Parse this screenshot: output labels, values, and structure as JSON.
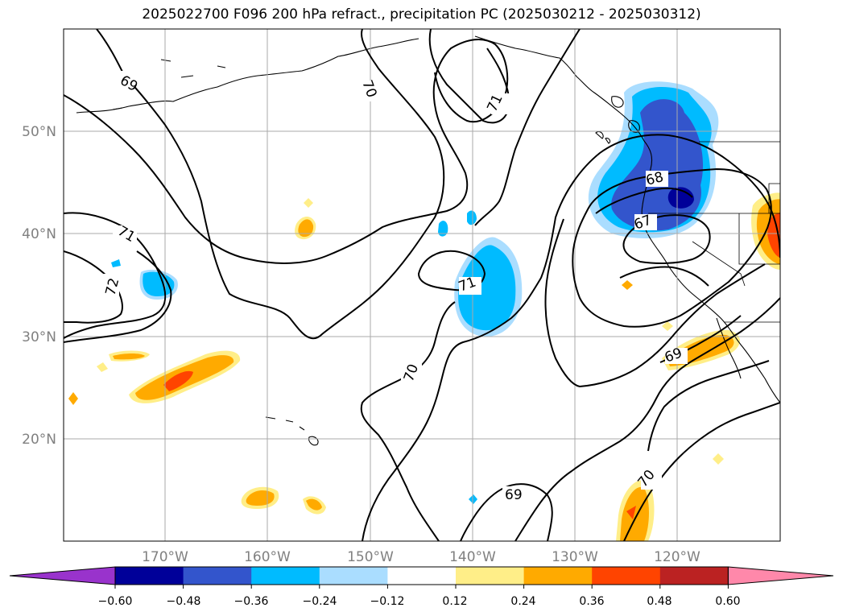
{
  "title": "2025022700 F096 200 hPa refract., precipitation PC (2025030212 - 2025030312)",
  "lat_labels": [
    "50°N",
    "40°N",
    "30°N",
    "20°N"
  ],
  "lon_labels": [
    "170°W",
    "160°W",
    "150°W",
    "140°W",
    "130°W",
    "120°W"
  ],
  "contour_labels": [
    "69",
    "70",
    "71",
    "71",
    "72",
    "68",
    "67",
    "71",
    "70",
    "69",
    "69",
    "70"
  ],
  "colorbar": {
    "labels": [
      "−0.60",
      "−0.48",
      "−0.36",
      "−0.24",
      "−0.12",
      "0.12",
      "0.24",
      "0.36",
      "0.48",
      "0.60"
    ],
    "colors": [
      "#9933cc",
      "#000099",
      "#3355cc",
      "#00bbff",
      "#aaddff",
      "#ffffff",
      "#ffee88",
      "#ffaa00",
      "#ff4400",
      "#bb2222",
      "#ff88aa"
    ]
  }
}
